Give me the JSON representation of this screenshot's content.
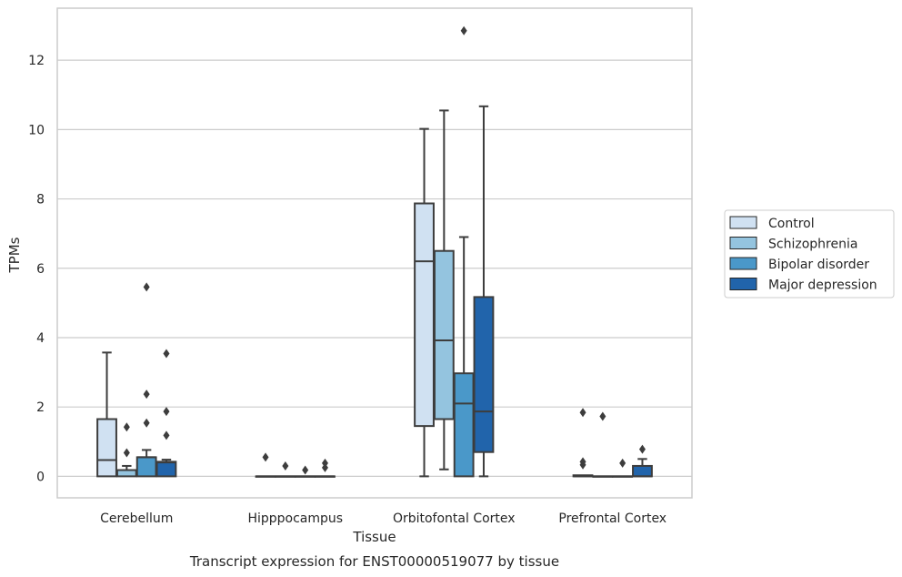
{
  "chart_data": {
    "type": "box",
    "title": "Transcript expression for ENST00000519077 by tissue",
    "xlabel": "Tissue",
    "ylabel": "TPMs",
    "ylim": [
      -0.62,
      13.5
    ],
    "yticks": [
      0,
      2,
      4,
      6,
      8,
      10,
      12
    ],
    "grid": "horizontal",
    "legend_position": "right",
    "categories": [
      "Cerebellum",
      "Hipppocampus",
      "Orbitofontal Cortex",
      "Prefrontal Cortex"
    ],
    "series": [
      {
        "name": "Control",
        "color": "#d0e1f2",
        "boxes": [
          {
            "whislo": 0,
            "q1": 0,
            "med": 0.47,
            "q3": 1.65,
            "whishi": 3.57,
            "fliers": []
          },
          {
            "whislo": 0,
            "q1": 0,
            "med": 0,
            "q3": 0,
            "whishi": 0,
            "fliers": [
              0.55
            ]
          },
          {
            "whislo": 0,
            "q1": 1.45,
            "med": 6.2,
            "q3": 7.87,
            "whishi": 10.02,
            "fliers": []
          },
          {
            "whislo": 0,
            "q1": 0,
            "med": 0,
            "q3": 0.03,
            "whishi": 0.03,
            "fliers": [
              0.33,
              0.42,
              1.84
            ]
          }
        ]
      },
      {
        "name": "Schizophrenia",
        "color": "#94c4df",
        "boxes": [
          {
            "whislo": 0,
            "q1": 0,
            "med": 0.18,
            "q3": 0.18,
            "whishi": 0.3,
            "fliers": [
              0.68,
              1.42
            ]
          },
          {
            "whislo": 0,
            "q1": 0,
            "med": 0,
            "q3": 0,
            "whishi": 0,
            "fliers": [
              0.3
            ]
          },
          {
            "whislo": 0.2,
            "q1": 1.65,
            "med": 3.92,
            "q3": 6.5,
            "whishi": 10.55,
            "fliers": []
          },
          {
            "whislo": 0,
            "q1": 0,
            "med": 0,
            "q3": 0,
            "whishi": 0,
            "fliers": [
              1.73
            ]
          }
        ]
      },
      {
        "name": "Bipolar disorder",
        "color": "#4a98c9",
        "boxes": [
          {
            "whislo": 0,
            "q1": 0,
            "med": 0.55,
            "q3": 0.55,
            "whishi": 0.76,
            "fliers": [
              1.54,
              2.37,
              5.46
            ]
          },
          {
            "whislo": 0,
            "q1": 0,
            "med": 0,
            "q3": 0,
            "whishi": 0,
            "fliers": [
              0.18
            ]
          },
          {
            "whislo": 0,
            "q1": 0,
            "med": 2.1,
            "q3": 2.97,
            "whishi": 6.9,
            "fliers": [
              12.85
            ]
          },
          {
            "whislo": 0,
            "q1": 0,
            "med": 0,
            "q3": 0,
            "whishi": 0,
            "fliers": [
              0.38
            ]
          }
        ]
      },
      {
        "name": "Major depression",
        "color": "#2164ab",
        "boxes": [
          {
            "whislo": 0,
            "q1": 0,
            "med": 0.4,
            "q3": 0.42,
            "whishi": 0.48,
            "fliers": [
              1.18,
              1.87,
              3.54
            ]
          },
          {
            "whislo": 0,
            "q1": 0,
            "med": 0,
            "q3": 0,
            "whishi": 0,
            "fliers": [
              0.25,
              0.38
            ]
          },
          {
            "whislo": 0,
            "q1": 0.7,
            "med": 1.87,
            "q3": 5.17,
            "whishi": 10.67,
            "fliers": []
          },
          {
            "whislo": 0,
            "q1": 0,
            "med": 0,
            "q3": 0.3,
            "whishi": 0.5,
            "fliers": [
              0.78
            ]
          }
        ]
      }
    ]
  }
}
